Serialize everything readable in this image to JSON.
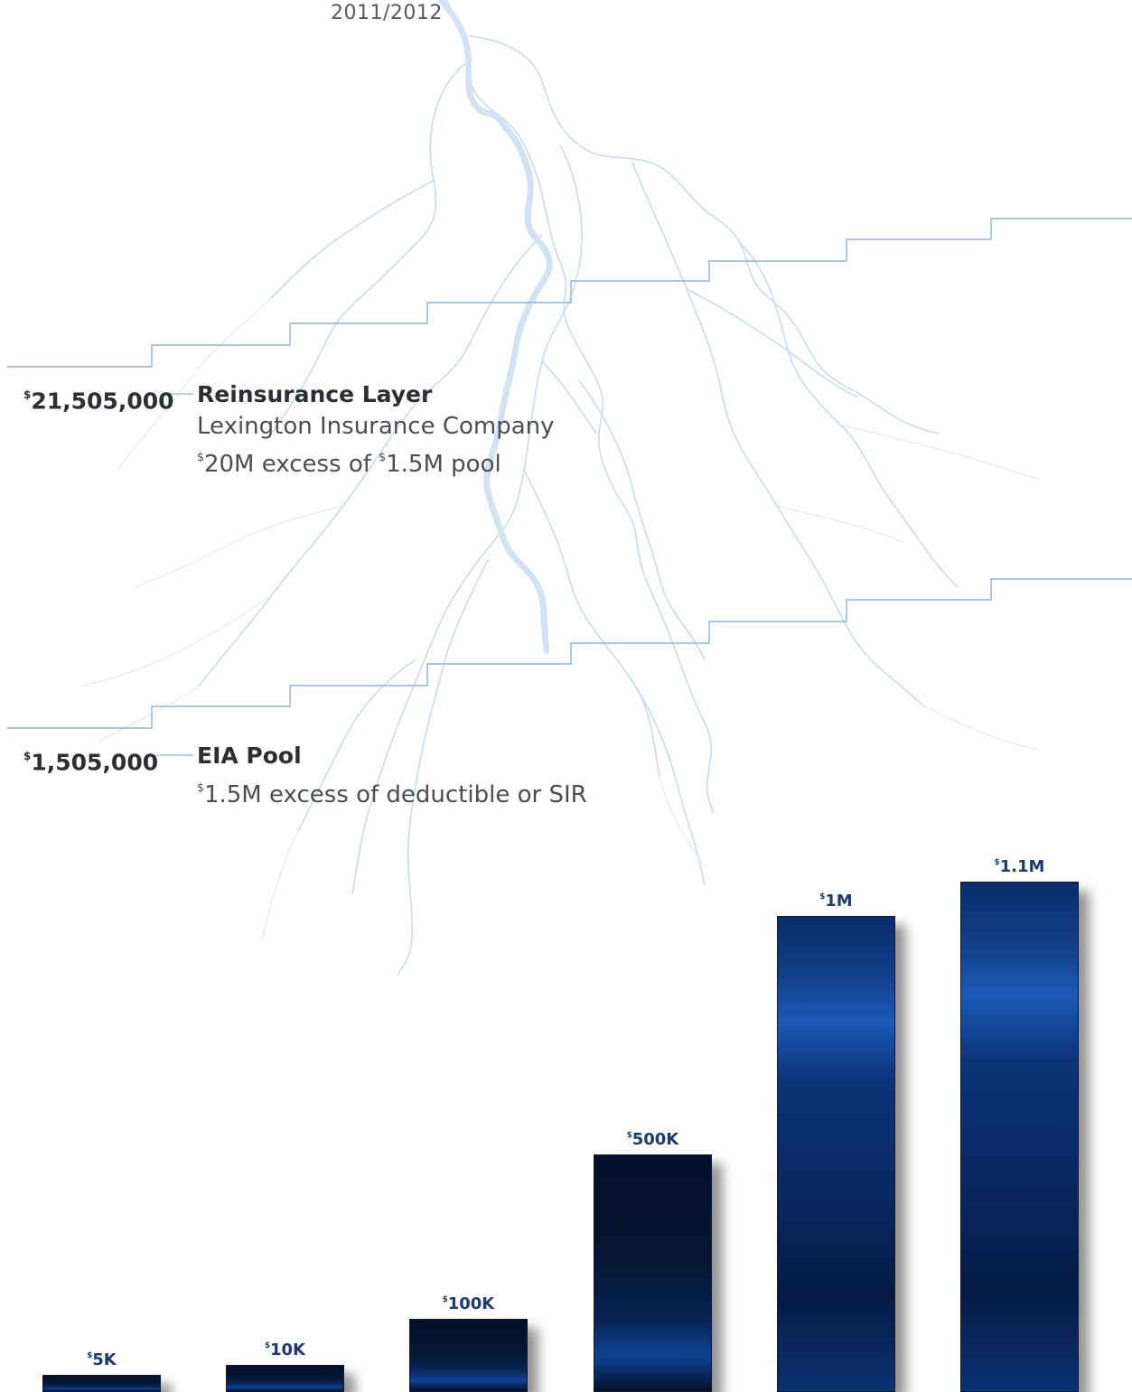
{
  "header": {
    "year": "2011/2012"
  },
  "layers": [
    {
      "amount_symbol": "$",
      "amount_value": "21,505,000",
      "name": "Reinsurance Layer",
      "company": "Lexington Insurance Company",
      "desc_parts": [
        "$",
        "20M excess of ",
        "$",
        "1.5M pool"
      ]
    },
    {
      "amount_symbol": "$",
      "amount_value": "1,505,000",
      "name": "EIA Pool",
      "desc_parts": [
        "$",
        "1.5M excess of deductible or SIR"
      ]
    }
  ],
  "chart_data": {
    "type": "bar",
    "categories": [
      "",
      "",
      "",
      "",
      "",
      ""
    ],
    "values": [
      5000,
      10000,
      100000,
      500000,
      1000000,
      1100000
    ],
    "value_labels": [
      {
        "symbol": "$",
        "text": "5K"
      },
      {
        "symbol": "$",
        "text": "10K"
      },
      {
        "symbol": "$",
        "text": "100K"
      },
      {
        "symbol": "$",
        "text": "500K"
      },
      {
        "symbol": "$",
        "text": "1M"
      },
      {
        "symbol": "$",
        "text": "1.1M"
      }
    ],
    "title": "",
    "xlabel": "",
    "ylabel": "",
    "grid": false,
    "legend": "none"
  },
  "colors": {
    "line": "#8fb4dc",
    "river": "#d3e2f2",
    "river_thin": "#c9dbee",
    "bar_dark": "#050f2e",
    "bar_mid": "#0a2a66",
    "bar_bright": "#1b5cc0",
    "label": "#1e3a6e"
  }
}
